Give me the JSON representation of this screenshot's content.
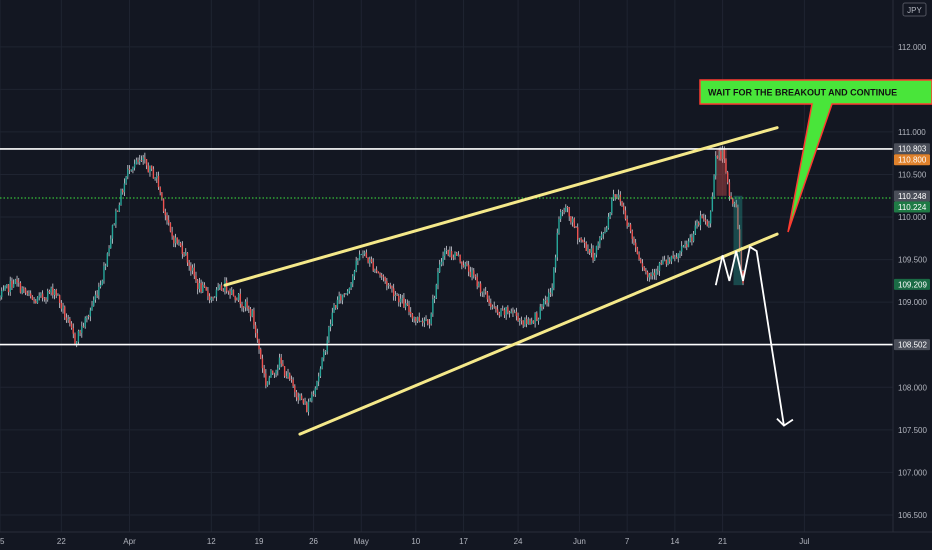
{
  "colors": {
    "background": "#131722",
    "grid": "#1f2431",
    "up": "#26a69a",
    "down": "#ef5350",
    "wick": "#d1d4dc",
    "channel": "#f5e98a",
    "level": "#ffffff",
    "dotted": "#3ee83e",
    "note_fill": "#49e53a",
    "note_border": "#ff3b30",
    "tag_dark": "#4a4e59",
    "tag_orange": "#e0822c",
    "tag_green": "#1f7a45",
    "tag_green2": "#1a6b45"
  },
  "currency": "JPY",
  "annotation": "WAIT FOR THE BREAKOUT AND CONTINUE",
  "chart_data": {
    "type": "candlestick",
    "symbol_unit": "JPY",
    "y_range": [
      106.3,
      112.55
    ],
    "x_range": [
      0,
      131
    ],
    "y_ticks": [
      "112.000",
      "111.500",
      "111.000",
      "110.500",
      "110.000",
      "109.500",
      "109.000",
      "108.500",
      "108.000",
      "107.500",
      "107.000",
      "106.500"
    ],
    "x_ticks": [
      {
        "label": "15",
        "x": 0
      },
      {
        "label": "22",
        "x": 9
      },
      {
        "label": "Apr",
        "x": 19
      },
      {
        "label": "12",
        "x": 31
      },
      {
        "label": "19",
        "x": 38
      },
      {
        "label": "26",
        "x": 46
      },
      {
        "label": "May",
        "x": 53
      },
      {
        "label": "10",
        "x": 61
      },
      {
        "label": "17",
        "x": 68
      },
      {
        "label": "24",
        "x": 76
      },
      {
        "label": "Jun",
        "x": 85
      },
      {
        "label": "7",
        "x": 92
      },
      {
        "label": "14",
        "x": 99
      },
      {
        "label": "21",
        "x": 106
      },
      {
        "label": "Jul",
        "x": 118
      }
    ],
    "price_tags": [
      {
        "label": "110.803",
        "value": 110.803,
        "style": "dark"
      },
      {
        "label": "110.800",
        "value": 110.8,
        "style": "orange"
      },
      {
        "label": "110.248",
        "value": 110.248,
        "style": "dark"
      },
      {
        "label": "110.224",
        "value": 110.224,
        "style": "green"
      },
      {
        "label": "109.209",
        "value": 109.209,
        "style": "green2"
      },
      {
        "label": "108.502",
        "value": 108.502,
        "style": "dark"
      }
    ],
    "horizontal_levels": [
      110.8,
      108.502
    ],
    "dotted_level": 110.224,
    "channel_upper": [
      [
        33,
        109.2
      ],
      [
        114,
        111.05
      ]
    ],
    "channel_lower": [
      [
        44,
        107.45
      ],
      [
        114,
        109.8
      ]
    ],
    "forecast_zigzag": [
      [
        105,
        109.2
      ],
      [
        106,
        109.55
      ],
      [
        107,
        109.25
      ],
      [
        108,
        109.6
      ],
      [
        109,
        109.25
      ],
      [
        110,
        109.65
      ],
      [
        111,
        109.6
      ],
      [
        115,
        107.55
      ]
    ],
    "wedge_target": [
      112.2,
      109.72
    ],
    "anchors": [
      [
        0,
        109.05
      ],
      [
        2,
        109.25
      ],
      [
        5,
        109.0
      ],
      [
        8,
        109.15
      ],
      [
        11,
        108.55
      ],
      [
        13,
        108.85
      ],
      [
        15,
        109.3
      ],
      [
        17,
        110.05
      ],
      [
        19,
        110.6
      ],
      [
        21,
        110.65
      ],
      [
        23,
        110.45
      ],
      [
        25,
        109.8
      ],
      [
        27,
        109.6
      ],
      [
        29,
        109.2
      ],
      [
        31,
        109.05
      ],
      [
        33,
        109.2
      ],
      [
        35,
        109.05
      ],
      [
        37,
        108.85
      ],
      [
        39,
        108.05
      ],
      [
        41,
        108.3
      ],
      [
        43,
        108.0
      ],
      [
        45,
        107.75
      ],
      [
        47,
        108.2
      ],
      [
        49,
        108.95
      ],
      [
        51,
        109.15
      ],
      [
        53,
        109.6
      ],
      [
        55,
        109.4
      ],
      [
        57,
        109.2
      ],
      [
        59,
        109.0
      ],
      [
        61,
        108.8
      ],
      [
        63,
        108.8
      ],
      [
        65,
        109.6
      ],
      [
        67,
        109.55
      ],
      [
        69,
        109.35
      ],
      [
        71,
        109.1
      ],
      [
        73,
        108.85
      ],
      [
        75,
        108.9
      ],
      [
        77,
        108.75
      ],
      [
        79,
        108.85
      ],
      [
        81,
        109.15
      ],
      [
        82,
        110.0
      ],
      [
        83,
        110.1
      ],
      [
        85,
        109.75
      ],
      [
        87,
        109.55
      ],
      [
        89,
        109.9
      ],
      [
        90,
        110.3
      ],
      [
        91,
        110.2
      ],
      [
        93,
        109.7
      ],
      [
        95,
        109.3
      ],
      [
        97,
        109.45
      ],
      [
        99,
        109.5
      ],
      [
        101,
        109.7
      ],
      [
        103,
        110.0
      ],
      [
        104,
        109.9
      ],
      [
        105,
        110.7
      ],
      [
        106,
        110.75
      ],
      [
        107,
        110.25
      ],
      [
        108,
        110.1
      ],
      [
        109,
        109.2
      ]
    ]
  }
}
